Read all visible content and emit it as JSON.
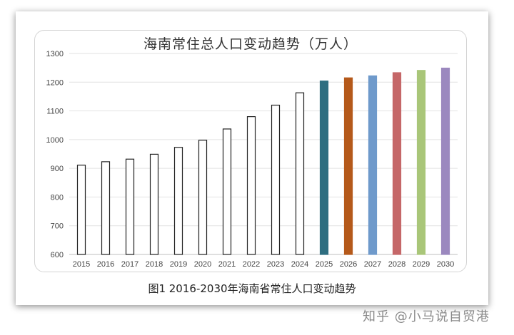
{
  "caption": "图1  2016-2030年海南省常住人口变动趋势",
  "watermark": "知乎 @小马说自贸港",
  "chart_data": {
    "type": "bar",
    "title": "海南常住总人口变动趋势（万人）",
    "xlabel": "",
    "ylabel": "",
    "ylim": [
      600,
      1300
    ],
    "yticks": [
      600,
      700,
      800,
      900,
      1000,
      1100,
      1200,
      1300
    ],
    "grid": true,
    "categories": [
      "2015",
      "2016",
      "2017",
      "2018",
      "2019",
      "2020",
      "2021",
      "2022",
      "2023",
      "2024",
      "2025",
      "2026",
      "2027",
      "2028",
      "2029",
      "2030"
    ],
    "values": [
      911,
      923,
      932,
      949,
      973,
      998,
      1037,
      1080,
      1120,
      1163,
      1204,
      1215,
      1222,
      1233,
      1241,
      1249
    ],
    "bar_fill": [
      "#ffffff",
      "#ffffff",
      "#ffffff",
      "#ffffff",
      "#ffffff",
      "#ffffff",
      "#ffffff",
      "#ffffff",
      "#ffffff",
      "#ffffff",
      "#2e6e80",
      "#b5591a",
      "#6f9acb",
      "#c56768",
      "#a9c679",
      "#9b88bf"
    ],
    "bar_stroke": [
      "#222222",
      "#222222",
      "#222222",
      "#222222",
      "#222222",
      "#222222",
      "#222222",
      "#222222",
      "#222222",
      "#222222",
      "#2e6e80",
      "#b5591a",
      "#6f9acb",
      "#c56768",
      "#a9c679",
      "#9b88bf"
    ]
  }
}
